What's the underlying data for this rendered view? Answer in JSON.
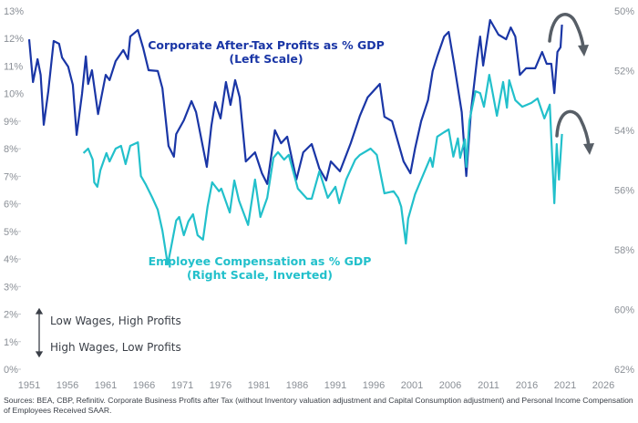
{
  "chart_data": {
    "type": "line",
    "title": "",
    "x_ticks": [
      "1951",
      "1956",
      "1961",
      "1966",
      "1971",
      "1976",
      "1981",
      "1986",
      "1991",
      "1996",
      "2001",
      "2006",
      "2011",
      "2016",
      "2021",
      "2026"
    ],
    "xlim": [
      1951,
      2026
    ],
    "y_left": {
      "ticks": [
        "0%",
        "1%",
        "2%",
        "3%",
        "4%",
        "5%",
        "6%",
        "7%",
        "8%",
        "9%",
        "10%",
        "11%",
        "12%",
        "13%"
      ],
      "ylim": [
        0,
        13
      ]
    },
    "y_right": {
      "ticks": [
        "50%",
        "52%",
        "54%",
        "56%",
        "58%",
        "60%",
        "62%"
      ],
      "ylim": [
        50,
        62
      ],
      "inverted": true
    },
    "grid": false,
    "series": [
      {
        "name": "Corporate After-Tax Profits as % GDP",
        "sublabel": "(Left Scale)",
        "axis": "left",
        "color": "#1a36a6",
        "points": [
          [
            1951.0,
            11.97
          ],
          [
            1951.5,
            10.42
          ],
          [
            1952.1,
            11.25
          ],
          [
            1952.5,
            10.68
          ],
          [
            1952.9,
            8.87
          ],
          [
            1953.5,
            10.09
          ],
          [
            1954.2,
            11.91
          ],
          [
            1954.9,
            11.81
          ],
          [
            1955.3,
            11.31
          ],
          [
            1956.1,
            10.98
          ],
          [
            1956.7,
            10.32
          ],
          [
            1957.2,
            8.5
          ],
          [
            1957.9,
            9.99
          ],
          [
            1958.4,
            11.35
          ],
          [
            1958.7,
            10.35
          ],
          [
            1959.2,
            10.85
          ],
          [
            1960.0,
            9.26
          ],
          [
            1961.0,
            10.68
          ],
          [
            1961.5,
            10.49
          ],
          [
            1962.3,
            11.18
          ],
          [
            1963.3,
            11.58
          ],
          [
            1963.9,
            11.25
          ],
          [
            1964.2,
            12.07
          ],
          [
            1965.2,
            12.31
          ],
          [
            1965.9,
            11.64
          ],
          [
            1966.6,
            10.85
          ],
          [
            1967.8,
            10.82
          ],
          [
            1968.4,
            10.19
          ],
          [
            1969.2,
            8.1
          ],
          [
            1969.9,
            7.71
          ],
          [
            1970.2,
            8.53
          ],
          [
            1971.2,
            9.03
          ],
          [
            1972.2,
            9.73
          ],
          [
            1972.8,
            9.33
          ],
          [
            1974.2,
            7.34
          ],
          [
            1974.8,
            8.83
          ],
          [
            1975.3,
            9.69
          ],
          [
            1976.0,
            9.1
          ],
          [
            1976.7,
            10.42
          ],
          [
            1977.3,
            9.59
          ],
          [
            1977.9,
            10.49
          ],
          [
            1978.5,
            9.86
          ],
          [
            1979.3,
            7.54
          ],
          [
            1980.5,
            7.87
          ],
          [
            1981.4,
            7.11
          ],
          [
            1982.1,
            6.72
          ],
          [
            1983.1,
            8.67
          ],
          [
            1983.9,
            8.2
          ],
          [
            1984.7,
            8.44
          ],
          [
            1985.9,
            6.88
          ],
          [
            1986.8,
            7.87
          ],
          [
            1987.9,
            8.17
          ],
          [
            1988.9,
            7.28
          ],
          [
            1989.8,
            6.85
          ],
          [
            1990.4,
            7.54
          ],
          [
            1991.6,
            7.18
          ],
          [
            1993.0,
            8.2
          ],
          [
            1994.2,
            9.2
          ],
          [
            1995.2,
            9.86
          ],
          [
            1996.8,
            10.35
          ],
          [
            1997.4,
            9.16
          ],
          [
            1998.4,
            9.0
          ],
          [
            1999.9,
            7.54
          ],
          [
            2000.8,
            7.11
          ],
          [
            2001.4,
            8.01
          ],
          [
            2002.2,
            9.0
          ],
          [
            2003.1,
            9.76
          ],
          [
            2003.7,
            10.82
          ],
          [
            2004.3,
            11.35
          ],
          [
            2005.2,
            12.07
          ],
          [
            2005.8,
            12.24
          ],
          [
            2006.5,
            11.08
          ],
          [
            2007.5,
            9.33
          ],
          [
            2008.1,
            7.01
          ],
          [
            2008.7,
            9.33
          ],
          [
            2009.5,
            11.25
          ],
          [
            2009.9,
            12.07
          ],
          [
            2010.3,
            11.02
          ],
          [
            2011.2,
            12.67
          ],
          [
            2012.3,
            12.14
          ],
          [
            2013.3,
            11.97
          ],
          [
            2013.9,
            12.4
          ],
          [
            2014.5,
            12.07
          ],
          [
            2015.1,
            10.68
          ],
          [
            2015.9,
            10.92
          ],
          [
            2017.1,
            10.92
          ],
          [
            2018.0,
            11.51
          ],
          [
            2018.6,
            11.08
          ],
          [
            2019.2,
            11.08
          ],
          [
            2019.6,
            10.02
          ],
          [
            2020.0,
            11.51
          ],
          [
            2020.4,
            11.68
          ],
          [
            2020.6,
            12.5
          ]
        ]
      },
      {
        "name": "Employee Compensation as % GDP",
        "sublabel": "(Right Scale, Inverted)",
        "axis": "right",
        "color": "#22c0cb",
        "points": [
          [
            1958.1,
            54.76
          ],
          [
            1958.7,
            54.61
          ],
          [
            1959.3,
            54.98
          ],
          [
            1959.5,
            55.74
          ],
          [
            1959.9,
            55.89
          ],
          [
            1960.3,
            55.34
          ],
          [
            1961.1,
            54.76
          ],
          [
            1961.5,
            55.04
          ],
          [
            1962.3,
            54.61
          ],
          [
            1963.0,
            54.52
          ],
          [
            1963.6,
            55.13
          ],
          [
            1964.2,
            54.52
          ],
          [
            1965.2,
            54.4
          ],
          [
            1965.6,
            55.53
          ],
          [
            1966.2,
            55.8
          ],
          [
            1967.1,
            56.26
          ],
          [
            1967.8,
            56.66
          ],
          [
            1968.4,
            57.36
          ],
          [
            1969.1,
            58.49
          ],
          [
            1969.5,
            57.97
          ],
          [
            1970.2,
            57.02
          ],
          [
            1970.6,
            56.9
          ],
          [
            1971.2,
            57.51
          ],
          [
            1971.8,
            57.05
          ],
          [
            1972.4,
            56.81
          ],
          [
            1973.0,
            57.51
          ],
          [
            1973.7,
            57.66
          ],
          [
            1974.3,
            56.56
          ],
          [
            1974.9,
            55.74
          ],
          [
            1975.8,
            56.04
          ],
          [
            1976.1,
            55.95
          ],
          [
            1977.2,
            56.75
          ],
          [
            1977.8,
            55.68
          ],
          [
            1978.4,
            56.35
          ],
          [
            1979.6,
            57.17
          ],
          [
            1980.5,
            55.65
          ],
          [
            1981.2,
            56.9
          ],
          [
            1982.1,
            56.26
          ],
          [
            1982.9,
            54.92
          ],
          [
            1983.5,
            54.73
          ],
          [
            1984.3,
            54.98
          ],
          [
            1984.9,
            54.82
          ],
          [
            1986.1,
            55.95
          ],
          [
            1987.3,
            56.29
          ],
          [
            1987.9,
            56.29
          ],
          [
            1988.9,
            55.37
          ],
          [
            1990.0,
            56.26
          ],
          [
            1991.0,
            55.89
          ],
          [
            1991.5,
            56.44
          ],
          [
            1992.4,
            55.65
          ],
          [
            1993.6,
            54.98
          ],
          [
            1994.2,
            54.82
          ],
          [
            1995.6,
            54.61
          ],
          [
            1996.4,
            54.82
          ],
          [
            1997.4,
            56.11
          ],
          [
            1998.6,
            56.04
          ],
          [
            1999.2,
            56.26
          ],
          [
            1999.6,
            56.56
          ],
          [
            2000.2,
            57.79
          ],
          [
            2000.5,
            56.96
          ],
          [
            2001.4,
            56.14
          ],
          [
            2002.2,
            55.65
          ],
          [
            2003.4,
            54.92
          ],
          [
            2003.7,
            55.22
          ],
          [
            2004.3,
            54.21
          ],
          [
            2005.2,
            54.06
          ],
          [
            2005.8,
            53.97
          ],
          [
            2006.4,
            54.88
          ],
          [
            2007.0,
            54.27
          ],
          [
            2007.3,
            54.92
          ],
          [
            2007.9,
            54.3
          ],
          [
            2008.1,
            55.22
          ],
          [
            2008.5,
            53.69
          ],
          [
            2009.3,
            52.69
          ],
          [
            2009.9,
            52.75
          ],
          [
            2010.4,
            53.21
          ],
          [
            2011.1,
            52.14
          ],
          [
            2011.5,
            52.69
          ],
          [
            2012.1,
            53.51
          ],
          [
            2012.9,
            52.38
          ],
          [
            2013.4,
            53.24
          ],
          [
            2013.7,
            52.32
          ],
          [
            2014.5,
            52.99
          ],
          [
            2015.4,
            53.21
          ],
          [
            2016.6,
            53.08
          ],
          [
            2017.4,
            52.93
          ],
          [
            2018.3,
            53.6
          ],
          [
            2019.0,
            53.14
          ],
          [
            2019.6,
            56.44
          ],
          [
            2019.9,
            54.46
          ],
          [
            2020.2,
            55.65
          ],
          [
            2020.6,
            54.12
          ]
        ]
      }
    ],
    "annotations": {
      "scale_up_label": "Low Wages, High Profits",
      "scale_down_label": "High Wages, Low Profits",
      "arrow_color": "#575e66"
    }
  },
  "source": "Sources: BEA, CBP, Refinitiv. Corporate Business Profits after Tax (without Inventory valuation adjustment and Capital Consumption adjustment) and Personal Income Compensation of Employees Received SAAR."
}
